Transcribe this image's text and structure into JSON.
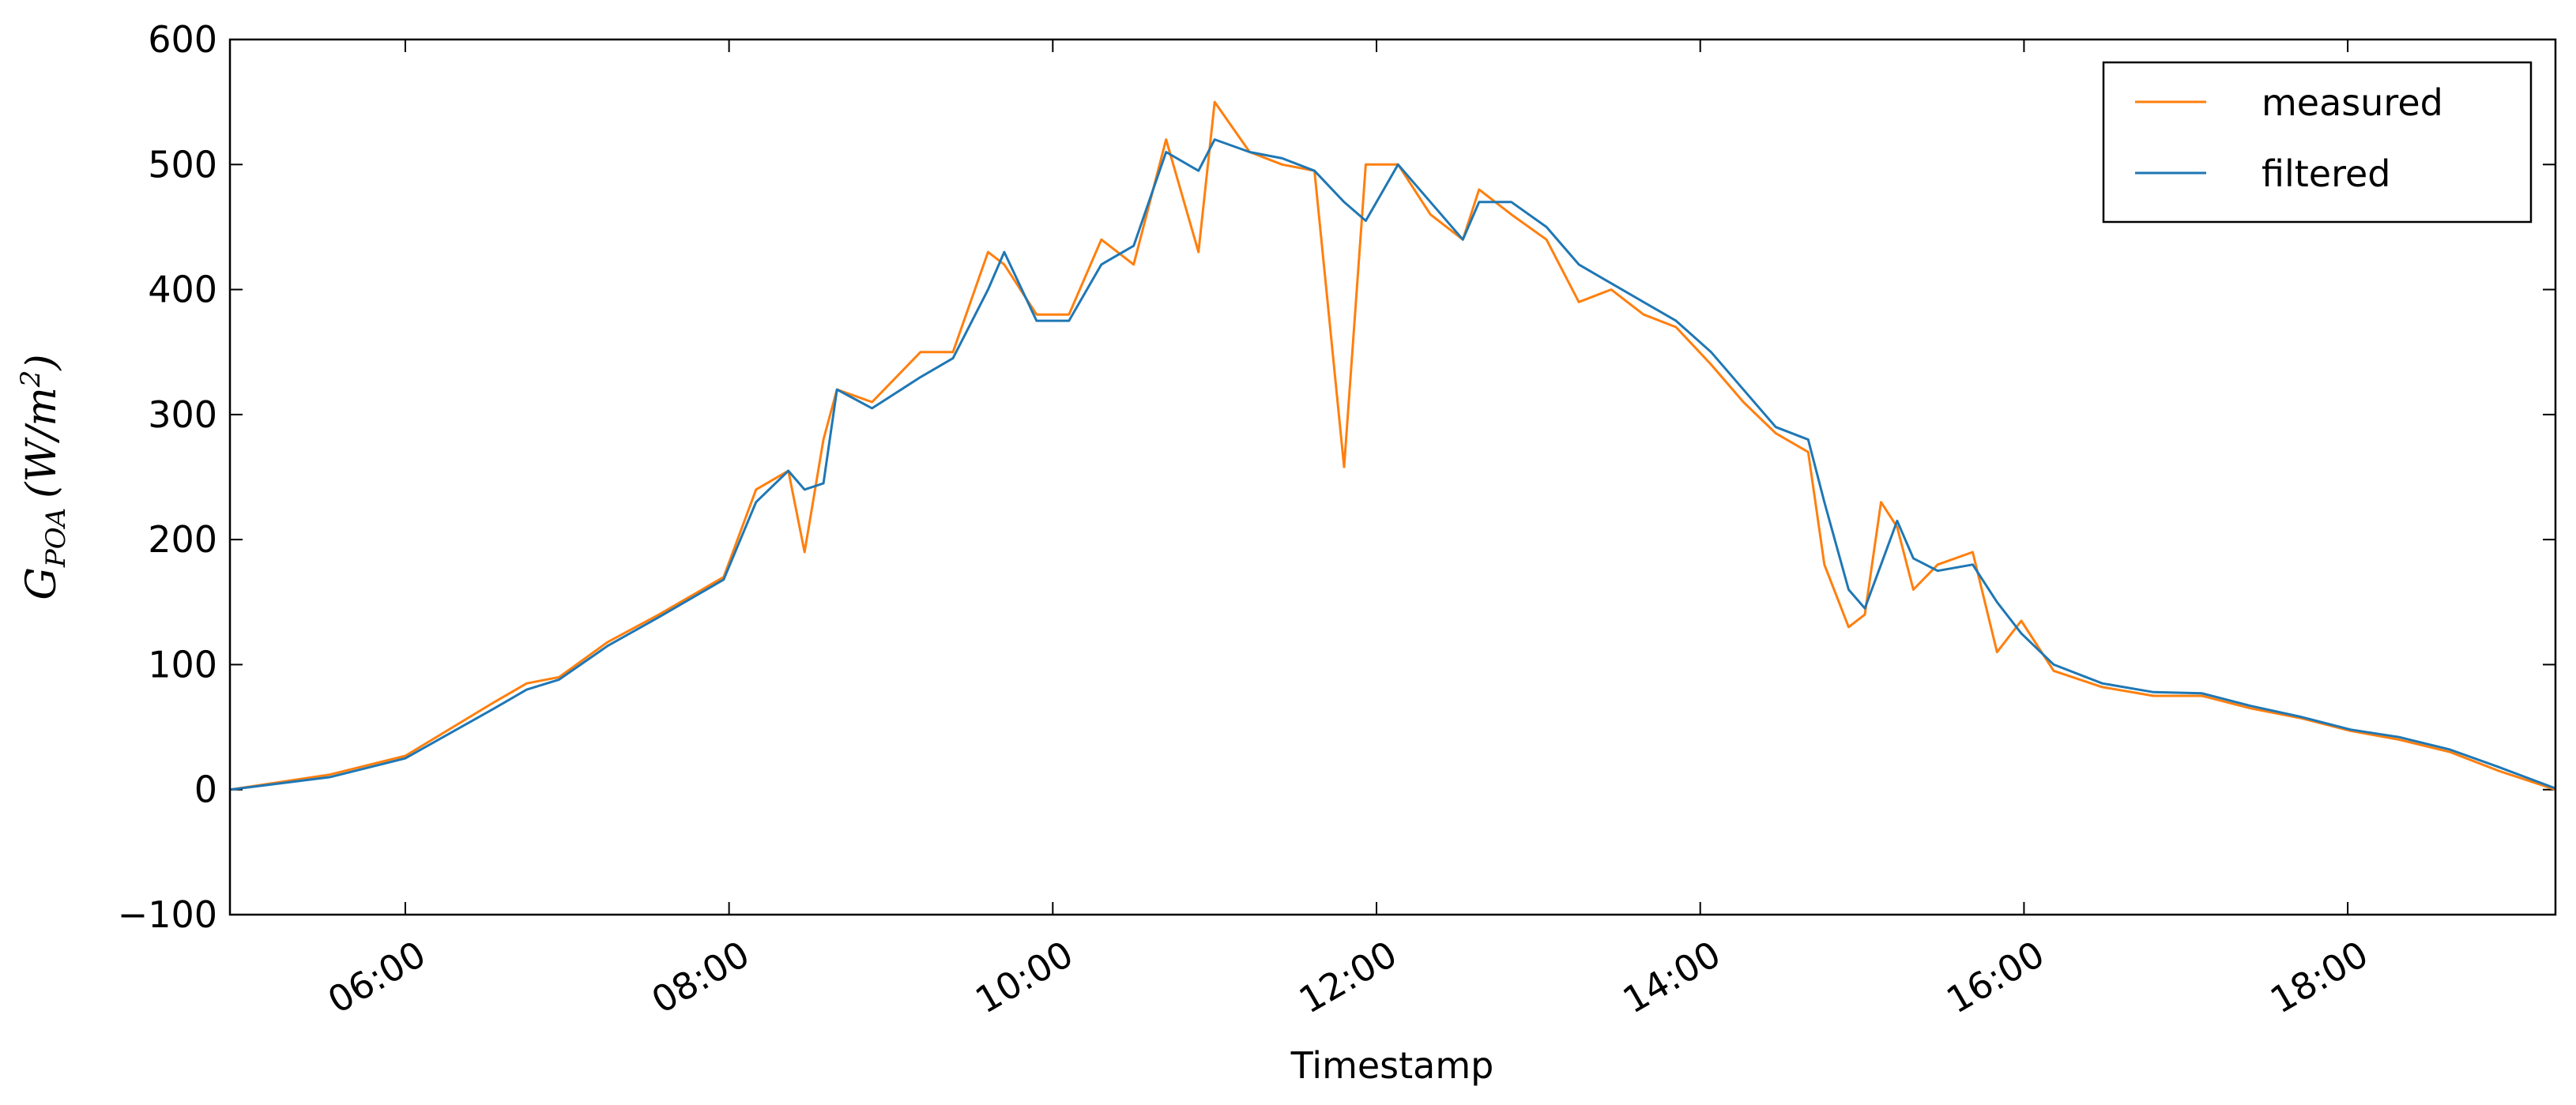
{
  "chart_data": {
    "type": "line",
    "xlabel": "Timestamp",
    "ylabel_parts": [
      "G",
      "POA",
      "(W/m",
      "2",
      ")"
    ],
    "x": [
      "04:55",
      "05:32",
      "06:00",
      "06:33",
      "06:45",
      "06:57",
      "07:15",
      "07:34",
      "07:58",
      "08:10",
      "08:22",
      "08:28",
      "08:35",
      "08:40",
      "08:53",
      "09:11",
      "09:23",
      "09:36",
      "09:42",
      "09:54",
      "10:06",
      "10:18",
      "10:30",
      "10:42",
      "10:54",
      "11:00",
      "11:13",
      "11:25",
      "11:37",
      "11:48",
      "11:56",
      "12:08",
      "12:20",
      "12:32",
      "12:38",
      "12:50",
      "13:03",
      "13:15",
      "13:27",
      "13:39",
      "13:51",
      "14:04",
      "14:16",
      "14:28",
      "14:40",
      "14:46",
      "14:55",
      "15:01",
      "15:07",
      "15:13",
      "15:19",
      "15:28",
      "15:41",
      "15:50",
      "15:59",
      "16:11",
      "16:29",
      "16:48",
      "17:06",
      "17:24",
      "17:43",
      "18:01",
      "18:19",
      "18:38",
      "18:56",
      "19:17"
    ],
    "series": [
      {
        "name": "measured",
        "color": "#ff7f0e",
        "values": [
          0,
          12,
          27,
          70,
          85,
          90,
          118,
          140,
          170,
          240,
          255,
          190,
          280,
          320,
          310,
          350,
          350,
          430,
          420,
          380,
          380,
          440,
          420,
          520,
          430,
          550,
          510,
          500,
          495,
          258,
          500,
          500,
          460,
          440,
          480,
          460,
          440,
          390,
          400,
          380,
          370,
          340,
          310,
          285,
          270,
          180,
          130,
          140,
          230,
          210,
          160,
          180,
          190,
          110,
          135,
          95,
          82,
          75,
          75,
          65,
          57,
          47,
          40,
          30,
          15,
          0
        ]
      },
      {
        "name": "filtered",
        "color": "#1f77b4",
        "values": [
          0,
          10,
          25,
          65,
          80,
          88,
          115,
          138,
          168,
          230,
          255,
          240,
          245,
          320,
          305,
          330,
          345,
          400,
          430,
          375,
          375,
          420,
          435,
          510,
          495,
          520,
          510,
          505,
          495,
          470,
          455,
          500,
          470,
          440,
          470,
          470,
          450,
          420,
          405,
          390,
          375,
          350,
          320,
          290,
          280,
          230,
          160,
          145,
          180,
          215,
          185,
          175,
          180,
          150,
          125,
          100,
          85,
          78,
          77,
          67,
          58,
          48,
          42,
          32,
          18,
          1
        ]
      }
    ],
    "xlim": [
      "04:55",
      "19:17"
    ],
    "xticks": [
      "06:00",
      "08:00",
      "10:00",
      "12:00",
      "14:00",
      "16:00",
      "18:00"
    ],
    "ylim": [
      -100,
      600
    ],
    "yticks": [
      {
        "value": -100,
        "label": "−100"
      },
      0,
      100,
      200,
      300,
      400,
      500,
      600
    ],
    "legend": "upper right"
  }
}
